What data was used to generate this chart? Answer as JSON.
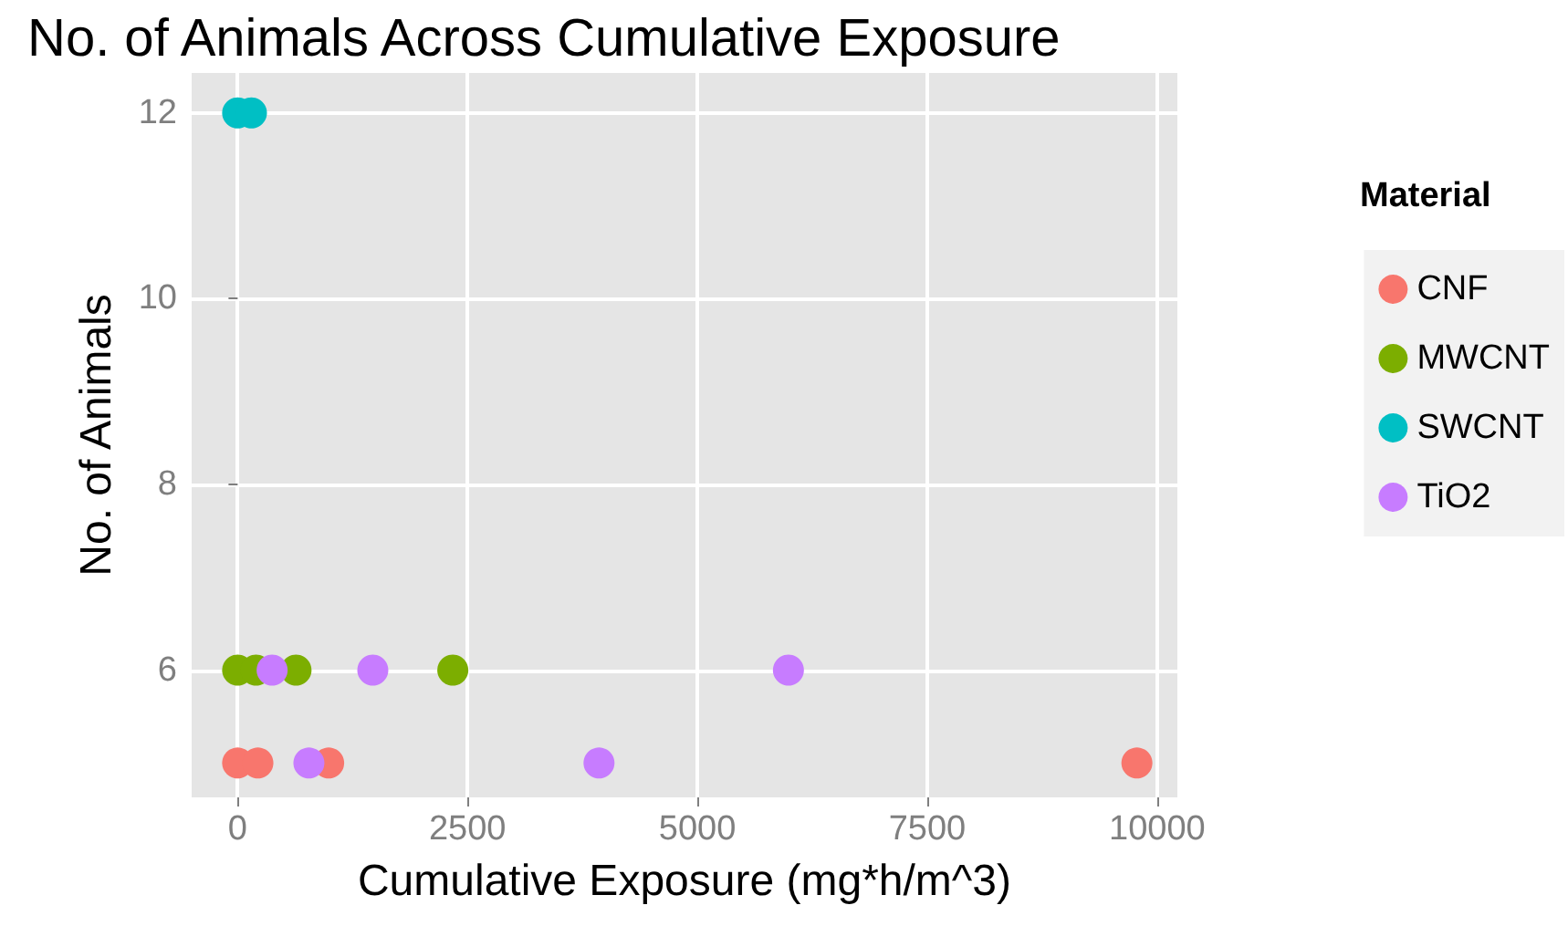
{
  "chart_data": {
    "type": "scatter",
    "title": "No. of Animals Across Cumulative Exposure",
    "xlabel": "Cumulative Exposure (mg*h/m^3)",
    "ylabel": "No. of Animals",
    "legend_title": "Material",
    "series": [
      {
        "name": "CNF",
        "color": "#f8766d",
        "x": [
          0,
          220,
          990,
          9780
        ],
        "values": [
          5,
          5,
          5,
          5
        ]
      },
      {
        "name": "MWCNT",
        "color": "#7cae00",
        "x": [
          0,
          200,
          635,
          2340
        ],
        "values": [
          6,
          6,
          6,
          6
        ]
      },
      {
        "name": "SWCNT",
        "color": "#00bfc4",
        "x": [
          0,
          150
        ],
        "values": [
          12,
          12
        ]
      },
      {
        "name": "TiO2",
        "color": "#c77cff",
        "x": [
          375,
          1470,
          5990,
          775,
          3930
        ],
        "values": [
          6,
          6,
          6,
          5,
          5
        ]
      }
    ],
    "xlim": [
      -500,
      10220
    ],
    "xticks": [
      0,
      2500,
      5000,
      7500,
      10000
    ],
    "ylim": [
      4.63,
      12.43
    ],
    "yticks": [
      6,
      8,
      10,
      12
    ],
    "grid": true,
    "legend": "right",
    "marker": "circle"
  }
}
